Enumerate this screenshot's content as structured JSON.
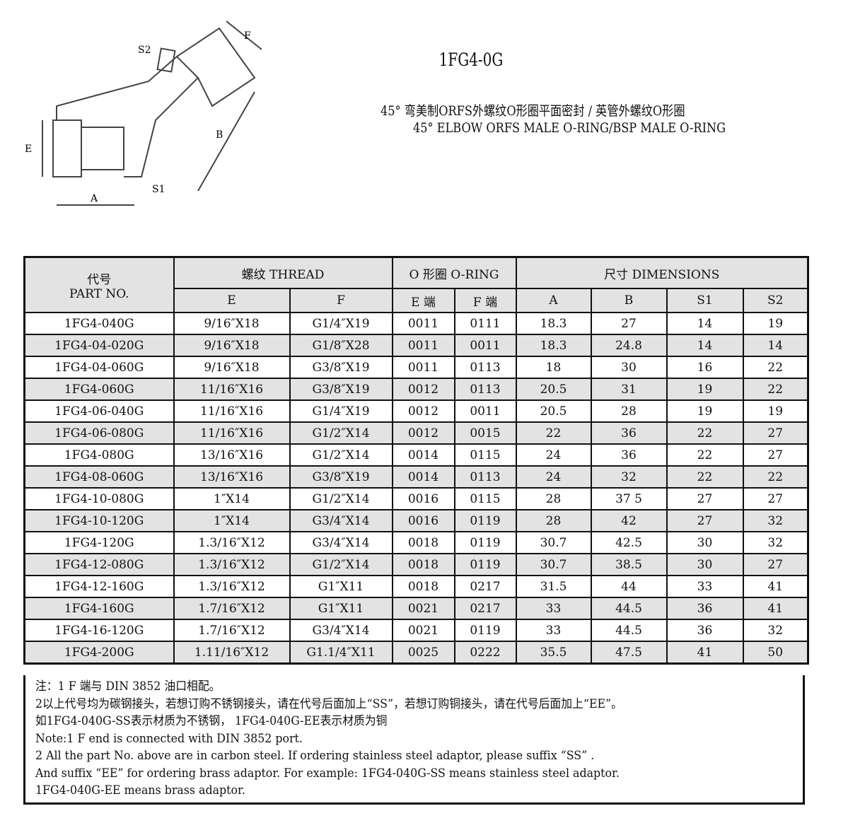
{
  "title": "1FG4-0G",
  "subtitle_cn": "45° 弯美制ORFS外螺纹O形圈平面密封 / 英管外螺纹O形圈",
  "subtitle_en": "45° ELBOW ORFS MALE O-RING/BSP MALE O-RING",
  "drawing_labels": {
    "s2": "S2",
    "f": "F",
    "e": "E",
    "b": "B",
    "a": "A",
    "s1": "S1"
  },
  "header": {
    "part_cn": "代号",
    "part_en": "PART NO.",
    "thread": "螺纹 THREAD",
    "oring": "O 形圈 O-RING",
    "dims": "尺寸  DIMENSIONS",
    "e": "E",
    "f": "F",
    "e_end": "E 端",
    "f_end": "F 端",
    "a": "A",
    "b": "B",
    "s1": "S1",
    "s2": "S2"
  },
  "rows": [
    [
      "1FG4-040G",
      "9/16″X18",
      "G1/4″X19",
      "0011",
      "0111",
      "18.3",
      "27",
      "14",
      "19"
    ],
    [
      "1FG4-04-020G",
      "9/16″X18",
      "G1/8″X28",
      "0011",
      "0011",
      "18.3",
      "24.8",
      "14",
      "14"
    ],
    [
      "1FG4-04-060G",
      "9/16″X18",
      "G3/8″X19",
      "0011",
      "0113",
      "18",
      "30",
      "16",
      "22"
    ],
    [
      "1FG4-060G",
      "11/16″X16",
      "G3/8″X19",
      "0012",
      "0113",
      "20.5",
      "31",
      "19",
      "22"
    ],
    [
      "1FG4-06-040G",
      "11/16″X16",
      "G1/4″X19",
      "0012",
      "0011",
      "20.5",
      "28",
      "19",
      "19"
    ],
    [
      "1FG4-06-080G",
      "11/16″X16",
      "G1/2″X14",
      "0012",
      "0015",
      "22",
      "36",
      "22",
      "27"
    ],
    [
      "1FG4-080G",
      "13/16″X16",
      "G1/2″X14",
      "0014",
      "0115",
      "24",
      "36",
      "22",
      "27"
    ],
    [
      "1FG4-08-060G",
      "13/16″X16",
      "G3/8″X19",
      "0014",
      "0113",
      "24",
      "32",
      "22",
      "22"
    ],
    [
      "1FG4-10-080G",
      "1″X14",
      "G1/2″X14",
      "0016",
      "0115",
      "28",
      "37 5",
      "27",
      "27"
    ],
    [
      "1FG4-10-120G",
      "1″X14",
      "G3/4″X14",
      "0016",
      "0119",
      "28",
      "42",
      "27",
      "32"
    ],
    [
      "1FG4-120G",
      "1.3/16″X12",
      "G3/4″X14",
      "0018",
      "0119",
      "30.7",
      "42.5",
      "30",
      "32"
    ],
    [
      "1FG4-12-080G",
      "1.3/16″X12",
      "G1/2″X14",
      "0018",
      "0119",
      "30.7",
      "38.5",
      "30",
      "27"
    ],
    [
      "1FG4-12-160G",
      "1.3/16″X12",
      "G1″X11",
      "0018",
      "0217",
      "31.5",
      "44",
      "33",
      "41"
    ],
    [
      "1FG4-160G",
      "1.7/16″X12",
      "G1″X11",
      "0021",
      "0217",
      "33",
      "44.5",
      "36",
      "41"
    ],
    [
      "1FG4-16-120G",
      "1.7/16″X12",
      "G3/4″X14",
      "0021",
      "0119",
      "33",
      "44.5",
      "36",
      "32"
    ],
    [
      "1FG4-200G",
      "1.11/16″X12",
      "G1.1/4″X11",
      "0025",
      "0222",
      "35.5",
      "47.5",
      "41",
      "50"
    ]
  ],
  "notes": [
    "注：1 F 端与 DIN 3852 油口相配。",
    "2以上代号均为碳钢接头，若想订购不锈钢接头，请在代号后面加上“SS”，若想订购铜接头，请在代号后面加上“EE”。",
    "如1FG4-040G-SS表示材质为不锈钢， 1FG4-040G-EE表示材质为铜",
    "Note:1 F end is connected with DIN 3852 port.",
    "2 All the part No. above are in carbon steel. If ordering stainless steel adaptor, please suffix “SS” .",
    "And suffix “EE” for ordering brass adaptor. For example: 1FG4-040G-SS  means stainless steel adaptor.",
    "1FG4-040G-EE means brass adaptor."
  ]
}
